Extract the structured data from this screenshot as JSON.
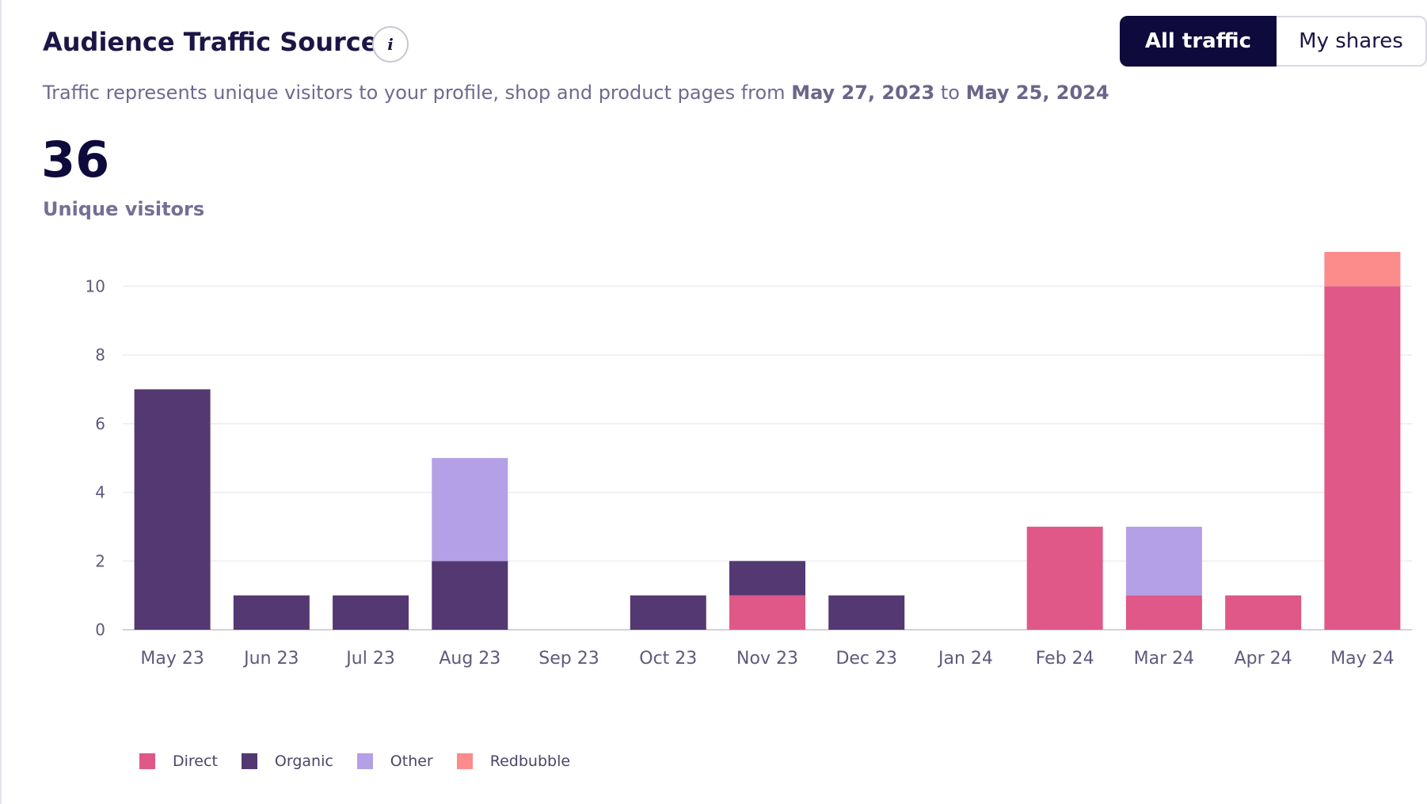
{
  "header": {
    "title": "Audience Traffic Sources",
    "info_symbol": "i"
  },
  "toggle": {
    "all_traffic": "All traffic",
    "my_shares": "My shares"
  },
  "subtitle": {
    "prefix": "Traffic represents unique visitors to your profile, shop and product pages from",
    "start_date": "May 27, 2023",
    "connector": "to",
    "end_date": "May 25, 2024"
  },
  "summary": {
    "total": "36",
    "label": "Unique visitors"
  },
  "colors": {
    "direct": "#df5887",
    "organic": "#533872",
    "other": "#b4a0e6",
    "redbubble": "#fc8b8b",
    "grid": "#ececf1",
    "axis": "#d3d1dc"
  },
  "chart_data": {
    "type": "bar",
    "stacked": true,
    "title": "",
    "xlabel": "",
    "ylabel": "",
    "ylim": [
      0,
      11
    ],
    "yticks": [
      0,
      2,
      4,
      6,
      8,
      10
    ],
    "categories": [
      "May 23",
      "Jun 23",
      "Jul 23",
      "Aug 23",
      "Sep 23",
      "Oct 23",
      "Nov 23",
      "Dec 23",
      "Jan 24",
      "Feb 24",
      "Mar 24",
      "Apr 24",
      "May 24"
    ],
    "series": [
      {
        "name": "Direct",
        "color": "#df5887",
        "values": [
          0,
          0,
          0,
          0,
          0,
          0,
          1,
          0,
          0,
          3,
          1,
          1,
          10
        ]
      },
      {
        "name": "Organic",
        "color": "#533872",
        "values": [
          7,
          1,
          1,
          2,
          0,
          1,
          1,
          1,
          0,
          0,
          0,
          0,
          0
        ]
      },
      {
        "name": "Other",
        "color": "#b4a0e6",
        "values": [
          0,
          0,
          0,
          3,
          0,
          0,
          0,
          0,
          0,
          0,
          2,
          0,
          0
        ]
      },
      {
        "name": "Redbubble",
        "color": "#fc8b8b",
        "values": [
          0,
          0,
          0,
          0,
          0,
          0,
          0,
          0,
          0,
          0,
          0,
          0,
          1
        ]
      }
    ],
    "legend_position": "bottom-left"
  }
}
